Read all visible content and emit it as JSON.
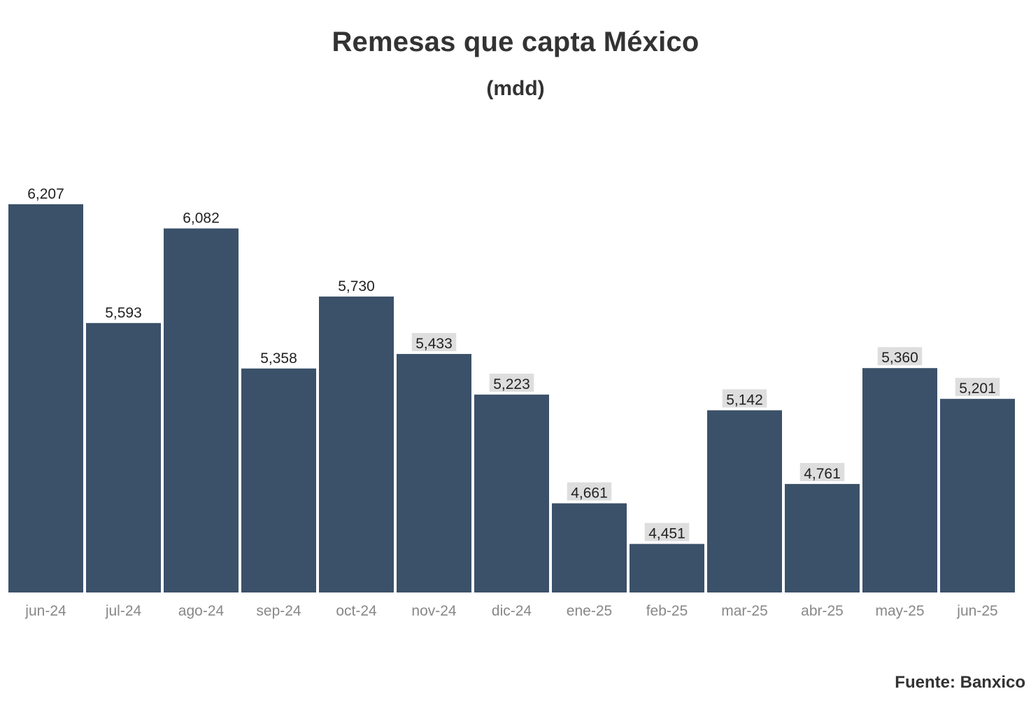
{
  "colors": {
    "bar": "#3b5169",
    "label_bg": "#dedede",
    "label_text": "#222222",
    "tick_text": "#888888",
    "title_text": "#333333"
  },
  "chart_data": {
    "type": "bar",
    "title": "Remesas que capta México",
    "subtitle": "(mdd)",
    "xlabel": "",
    "ylabel": "",
    "categories": [
      "jun-24",
      "jul-24",
      "ago-24",
      "sep-24",
      "oct-24",
      "nov-24",
      "dic-24",
      "ene-25",
      "feb-25",
      "mar-25",
      "abr-25",
      "may-25",
      "jun-25"
    ],
    "values": [
      6207,
      5593,
      6082,
      5358,
      5730,
      5433,
      5223,
      4661,
      4451,
      5142,
      4761,
      5360,
      5201
    ],
    "labels": [
      "6,207",
      "5,593",
      "6,082",
      "5,358",
      "5,730",
      "5,433",
      "5,223",
      "4,661",
      "4,451",
      "5,142",
      "4,761",
      "5,360",
      "5,201"
    ],
    "highlighted_labels": [
      false,
      false,
      false,
      false,
      false,
      true,
      true,
      true,
      true,
      true,
      true,
      true,
      true
    ],
    "ylim": [
      4200,
      6207
    ],
    "grid": false,
    "legend": "none"
  },
  "source": "Fuente: Banxico"
}
